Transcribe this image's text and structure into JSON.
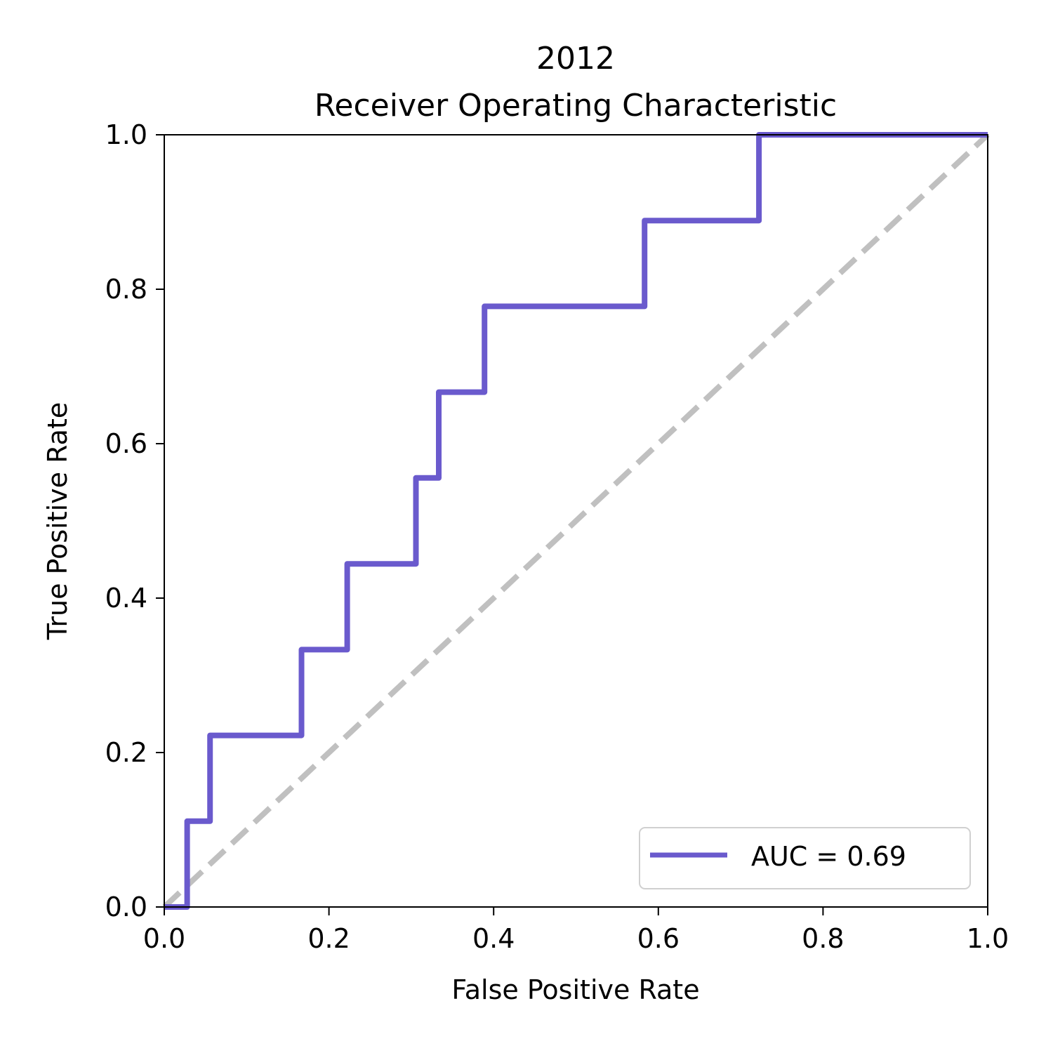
{
  "chart_data": {
    "type": "line",
    "title_lines": [
      "2012",
      "Receiver Operating Characteristic"
    ],
    "xlabel": "False Positive Rate",
    "ylabel": "True Positive Rate",
    "xlim": [
      0,
      1
    ],
    "ylim": [
      0,
      1
    ],
    "x_ticks": [
      "0.0",
      "0.2",
      "0.4",
      "0.6",
      "0.8",
      "1.0"
    ],
    "y_ticks": [
      "0.0",
      "0.2",
      "0.4",
      "0.6",
      "0.8",
      "1.0"
    ],
    "grid": false,
    "legend_position": "lower-right",
    "series": [
      {
        "name": "AUC = 0.69",
        "color": "#6a5acd",
        "step": true,
        "x": [
          0.0,
          0.0278,
          0.0278,
          0.0556,
          0.0556,
          0.1667,
          0.1667,
          0.2222,
          0.2222,
          0.3056,
          0.3056,
          0.3333,
          0.3333,
          0.3889,
          0.3889,
          0.5833,
          0.5833,
          0.7222,
          0.7222,
          1.0
        ],
        "y": [
          0.0,
          0.0,
          0.1111,
          0.1111,
          0.2222,
          0.2222,
          0.3333,
          0.3333,
          0.4444,
          0.4444,
          0.5556,
          0.5556,
          0.6667,
          0.6667,
          0.7778,
          0.7778,
          0.8889,
          0.8889,
          1.0,
          1.0
        ]
      }
    ],
    "reference_line": {
      "x": [
        0,
        1
      ],
      "y": [
        0,
        1
      ],
      "color": "#c0c0c0",
      "style": "dashed"
    }
  }
}
